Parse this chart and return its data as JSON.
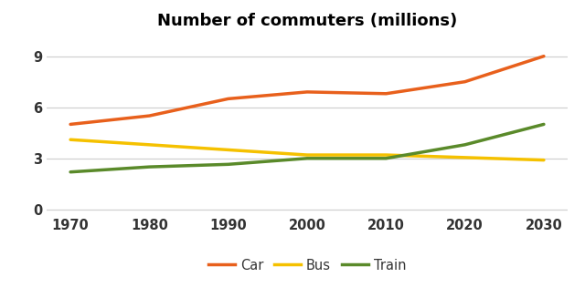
{
  "title": "Number of commuters (millions)",
  "years": [
    1970,
    1980,
    1990,
    2000,
    2010,
    2020,
    2030
  ],
  "car": [
    5.0,
    5.5,
    6.5,
    6.9,
    6.8,
    7.5,
    9.0
  ],
  "bus": [
    4.1,
    3.8,
    3.5,
    3.2,
    3.2,
    3.05,
    2.9
  ],
  "train": [
    2.2,
    2.5,
    2.65,
    3.0,
    3.0,
    3.8,
    5.0
  ],
  "car_color": "#E8601C",
  "bus_color": "#F5C100",
  "train_color": "#5A8A2A",
  "line_width": 2.5,
  "ylim": [
    -0.3,
    10.2
  ],
  "yticks": [
    0,
    3,
    6,
    9
  ],
  "xticks": [
    1970,
    1980,
    1990,
    2000,
    2010,
    2020,
    2030
  ],
  "legend_labels": [
    "Car",
    "Bus",
    "Train"
  ],
  "bg_color": "#ffffff",
  "grid_color": "#d0d0d0",
  "title_fontsize": 13,
  "tick_fontsize": 10.5,
  "legend_fontsize": 10.5
}
